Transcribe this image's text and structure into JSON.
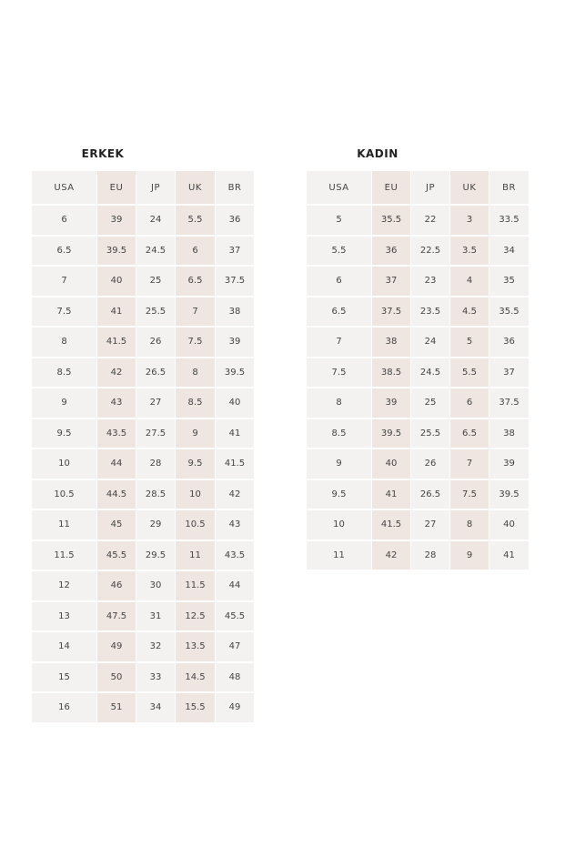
{
  "men": {
    "title": "ERKEK",
    "headers": [
      "USA",
      "EU",
      "JP",
      "UK",
      "BR"
    ],
    "rows": [
      [
        "6",
        "39",
        "24",
        "5.5",
        "36"
      ],
      [
        "6.5",
        "39.5",
        "24.5",
        "6",
        "37"
      ],
      [
        "7",
        "40",
        "25",
        "6.5",
        "37.5"
      ],
      [
        "7.5",
        "41",
        "25.5",
        "7",
        "38"
      ],
      [
        "8",
        "41.5",
        "26",
        "7.5",
        "39"
      ],
      [
        "8.5",
        "42",
        "26.5",
        "8",
        "39.5"
      ],
      [
        "9",
        "43",
        "27",
        "8.5",
        "40"
      ],
      [
        "9.5",
        "43.5",
        "27.5",
        "9",
        "41"
      ],
      [
        "10",
        "44",
        "28",
        "9.5",
        "41.5"
      ],
      [
        "10.5",
        "44.5",
        "28.5",
        "10",
        "42"
      ],
      [
        "11",
        "45",
        "29",
        "10.5",
        "43"
      ],
      [
        "11.5",
        "45.5",
        "29.5",
        "11",
        "43.5"
      ],
      [
        "12",
        "46",
        "30",
        "11.5",
        "44"
      ],
      [
        "13",
        "47.5",
        "31",
        "12.5",
        "45.5"
      ],
      [
        "14",
        "49",
        "32",
        "13.5",
        "47"
      ],
      [
        "15",
        "50",
        "33",
        "14.5",
        "48"
      ],
      [
        "16",
        "51",
        "34",
        "15.5",
        "49"
      ]
    ]
  },
  "women": {
    "title": "KADIN",
    "headers": [
      "USA",
      "EU",
      "JP",
      "UK",
      "BR"
    ],
    "rows": [
      [
        "5",
        "35.5",
        "22",
        "3",
        "33.5"
      ],
      [
        "5.5",
        "36",
        "22.5",
        "3.5",
        "34"
      ],
      [
        "6",
        "37",
        "23",
        "4",
        "35"
      ],
      [
        "6.5",
        "37.5",
        "23.5",
        "4.5",
        "35.5"
      ],
      [
        "7",
        "38",
        "24",
        "5",
        "36"
      ],
      [
        "7.5",
        "38.5",
        "24.5",
        "5.5",
        "37"
      ],
      [
        "8",
        "39",
        "25",
        "6",
        "37.5"
      ],
      [
        "8.5",
        "39.5",
        "25.5",
        "6.5",
        "38"
      ],
      [
        "9",
        "40",
        "26",
        "7",
        "39"
      ],
      [
        "9.5",
        "41",
        "26.5",
        "7.5",
        "39.5"
      ],
      [
        "10",
        "41.5",
        "27",
        "8",
        "40"
      ],
      [
        "11",
        "42",
        "28",
        "9",
        "41"
      ]
    ]
  },
  "colors": {
    "cell": "#f4f2f1",
    "highlight": "#efe6e1"
  }
}
